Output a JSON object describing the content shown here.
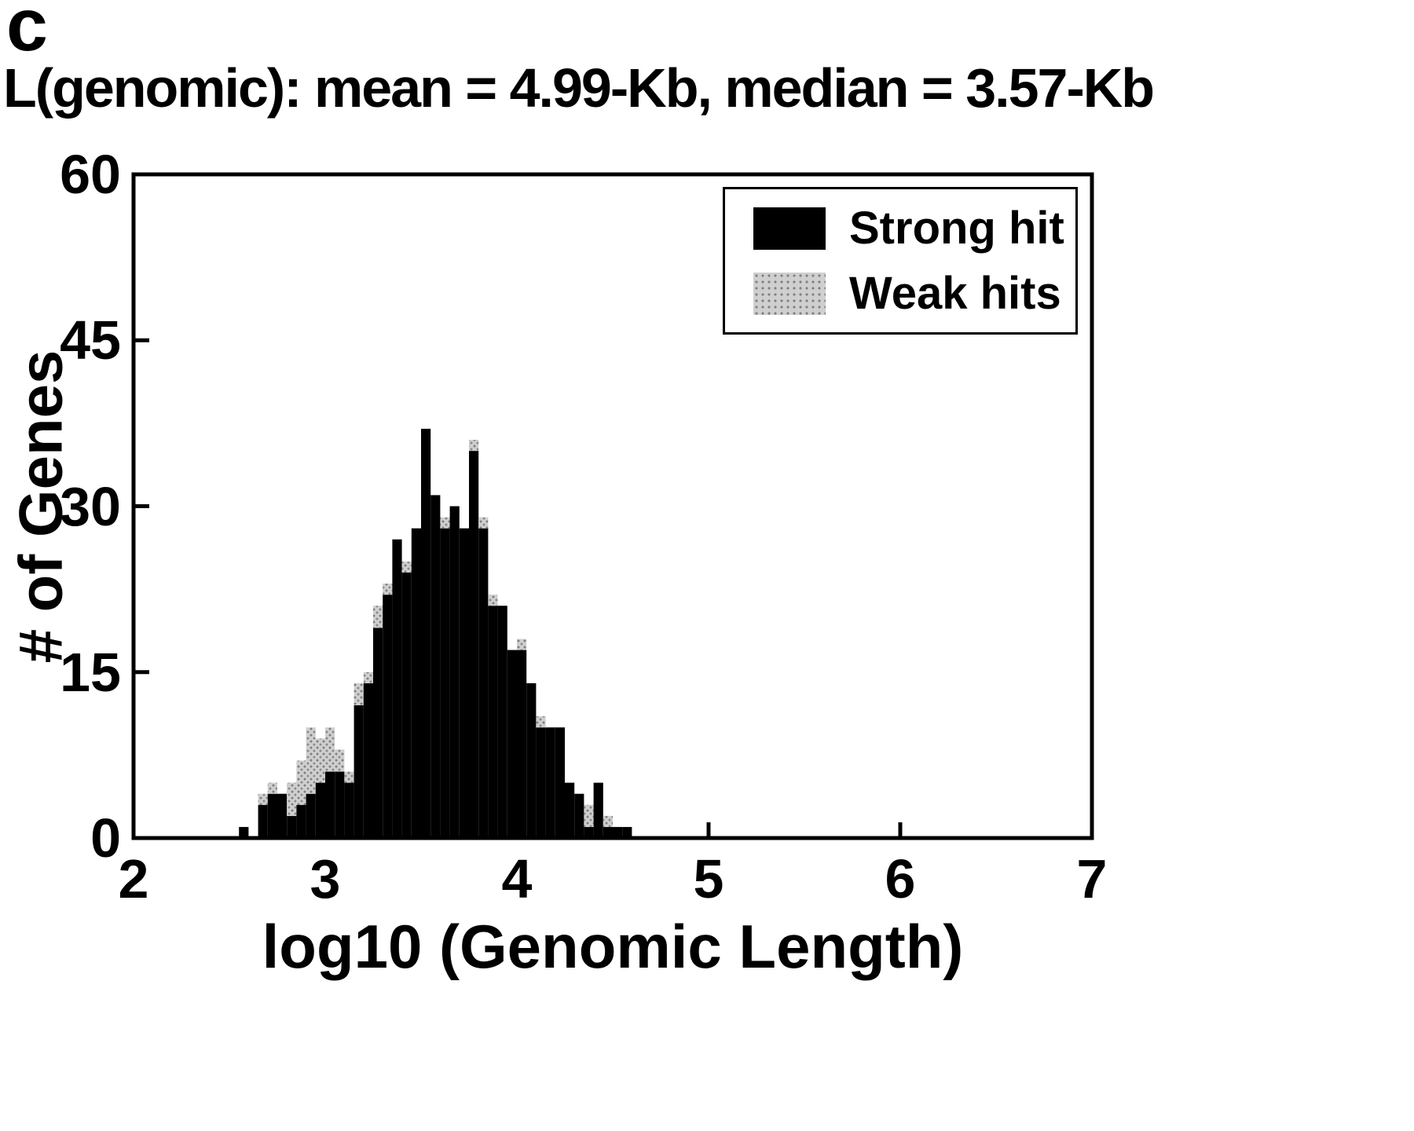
{
  "panel_label": "c",
  "chart_data": {
    "type": "bar",
    "subtype": "stacked-histogram",
    "title": "L(genomic): mean = 4.99-Kb, median = 3.57-Kb",
    "xlabel": "log10 (Genomic Length)",
    "ylabel": "# of Genes",
    "xlim": [
      2,
      7
    ],
    "ylim": [
      0,
      60
    ],
    "xticks": [
      2,
      3,
      4,
      5,
      6,
      7
    ],
    "yticks": [
      0,
      15,
      30,
      45,
      60
    ],
    "grid": false,
    "stacked": true,
    "legend_position": "top-right",
    "legend": [
      {
        "label": "Strong hit",
        "color": "#000000",
        "style": "solid"
      },
      {
        "label": "Weak hits",
        "color": "#cfcfcf",
        "style": "stippled"
      }
    ],
    "bin_width": 0.05,
    "bins": [
      {
        "x": 2.55,
        "strong": 1,
        "weak": 0
      },
      {
        "x": 2.6,
        "strong": 0,
        "weak": 0
      },
      {
        "x": 2.65,
        "strong": 3,
        "weak": 1
      },
      {
        "x": 2.7,
        "strong": 4,
        "weak": 1
      },
      {
        "x": 2.75,
        "strong": 4,
        "weak": 0
      },
      {
        "x": 2.8,
        "strong": 2,
        "weak": 3
      },
      {
        "x": 2.85,
        "strong": 3,
        "weak": 4
      },
      {
        "x": 2.9,
        "strong": 4,
        "weak": 6
      },
      {
        "x": 2.95,
        "strong": 5,
        "weak": 4
      },
      {
        "x": 3.0,
        "strong": 6,
        "weak": 4
      },
      {
        "x": 3.05,
        "strong": 6,
        "weak": 2
      },
      {
        "x": 3.1,
        "strong": 5,
        "weak": 1
      },
      {
        "x": 3.15,
        "strong": 12,
        "weak": 2
      },
      {
        "x": 3.2,
        "strong": 14,
        "weak": 1
      },
      {
        "x": 3.25,
        "strong": 19,
        "weak": 2
      },
      {
        "x": 3.3,
        "strong": 22,
        "weak": 1
      },
      {
        "x": 3.35,
        "strong": 27,
        "weak": 0
      },
      {
        "x": 3.4,
        "strong": 24,
        "weak": 1
      },
      {
        "x": 3.45,
        "strong": 28,
        "weak": 0
      },
      {
        "x": 3.5,
        "strong": 37,
        "weak": 0
      },
      {
        "x": 3.55,
        "strong": 31,
        "weak": 0
      },
      {
        "x": 3.6,
        "strong": 28,
        "weak": 1
      },
      {
        "x": 3.65,
        "strong": 30,
        "weak": 0
      },
      {
        "x": 3.7,
        "strong": 28,
        "weak": 0
      },
      {
        "x": 3.75,
        "strong": 35,
        "weak": 1
      },
      {
        "x": 3.8,
        "strong": 28,
        "weak": 1
      },
      {
        "x": 3.85,
        "strong": 21,
        "weak": 1
      },
      {
        "x": 3.9,
        "strong": 21,
        "weak": 0
      },
      {
        "x": 3.95,
        "strong": 17,
        "weak": 0
      },
      {
        "x": 4.0,
        "strong": 17,
        "weak": 1
      },
      {
        "x": 4.05,
        "strong": 14,
        "weak": 0
      },
      {
        "x": 4.1,
        "strong": 10,
        "weak": 1
      },
      {
        "x": 4.15,
        "strong": 10,
        "weak": 0
      },
      {
        "x": 4.2,
        "strong": 10,
        "weak": 0
      },
      {
        "x": 4.25,
        "strong": 5,
        "weak": 0
      },
      {
        "x": 4.3,
        "strong": 4,
        "weak": 0
      },
      {
        "x": 4.35,
        "strong": 1,
        "weak": 2
      },
      {
        "x": 4.4,
        "strong": 5,
        "weak": 0
      },
      {
        "x": 4.45,
        "strong": 1,
        "weak": 1
      },
      {
        "x": 4.5,
        "strong": 1,
        "weak": 0
      },
      {
        "x": 4.55,
        "strong": 1,
        "weak": 0
      }
    ]
  }
}
